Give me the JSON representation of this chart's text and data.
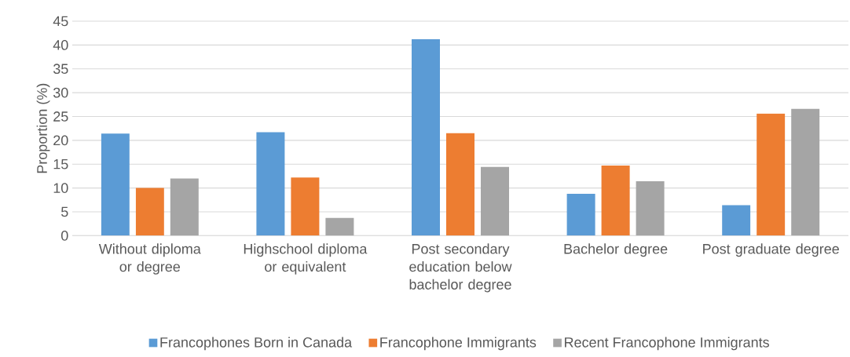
{
  "chart_data": {
    "type": "bar",
    "ylabel": "Proportion (%)",
    "categories": [
      "Without diploma or degree",
      "Highschool diploma or equivalent",
      "Post secondary education below bachelor degree",
      "Bachelor degree",
      "Post graduate degree"
    ],
    "series": [
      {
        "name": "Francophones Born in Canada",
        "color": "#5b9bd5",
        "values": [
          21.4,
          21.7,
          41.2,
          8.8,
          6.4
        ]
      },
      {
        "name": "Francophone Immigrants",
        "color": "#ed7d31",
        "values": [
          10.0,
          12.2,
          21.5,
          14.7,
          25.6
        ]
      },
      {
        "name": "Recent Francophone Immigrants",
        "color": "#a5a5a5",
        "values": [
          12.0,
          3.7,
          14.4,
          11.4,
          26.6
        ]
      }
    ],
    "ylim": [
      0,
      45
    ],
    "yticks": [
      0,
      5,
      10,
      15,
      20,
      25,
      30,
      35,
      40,
      45
    ],
    "grid": "y",
    "legend": "bottom"
  }
}
